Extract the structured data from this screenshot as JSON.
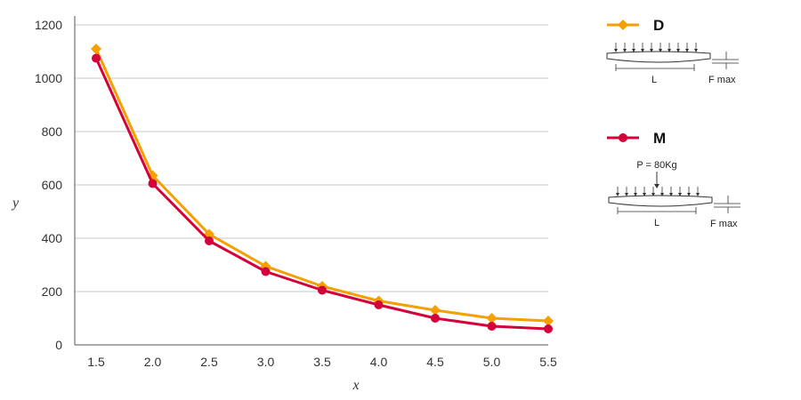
{
  "chart_data": {
    "type": "line",
    "title": "",
    "xlabel": "x",
    "ylabel": "y",
    "x": [
      1.5,
      2.0,
      2.5,
      3.0,
      3.5,
      4.0,
      4.5,
      5.0,
      5.5
    ],
    "x_tick_labels": [
      "1.5",
      "2.0",
      "2.5",
      "3.0",
      "3.5",
      "4.0",
      "4.5",
      "5.0",
      "5.5"
    ],
    "xlim": [
      1.5,
      5.5
    ],
    "ylim": [
      0,
      1200
    ],
    "y_ticks": [
      0,
      200,
      400,
      600,
      800,
      1000,
      1200
    ],
    "y_tick_labels": [
      "0",
      "200",
      "400",
      "600",
      "800",
      "1000",
      "1200"
    ],
    "grid": "horizontal",
    "legend_position": "right",
    "series": [
      {
        "name": "D",
        "color": "#f5a000",
        "marker": "diamond",
        "values": [
          1110,
          635,
          415,
          295,
          220,
          165,
          130,
          100,
          90
        ]
      },
      {
        "name": "M",
        "color": "#d4003a",
        "marker": "circle",
        "values": [
          1075,
          605,
          390,
          275,
          205,
          150,
          100,
          70,
          60
        ]
      }
    ]
  },
  "legend_diagrams": {
    "D": {
      "length_label": "L",
      "deflection_label": "F max"
    },
    "M": {
      "load_label": "P = 80Kg",
      "length_label": "L",
      "deflection_label": "F max"
    }
  }
}
